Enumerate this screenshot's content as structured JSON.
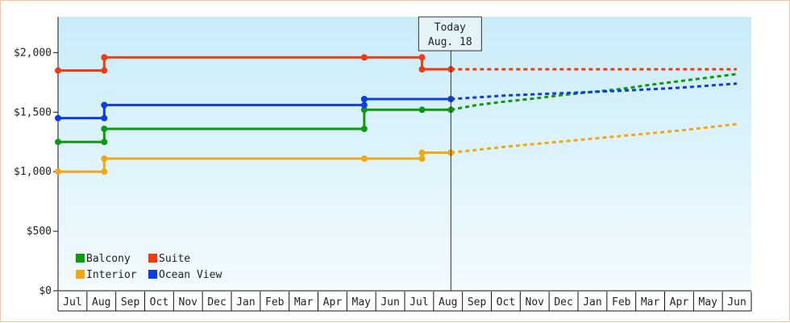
{
  "chart_data": {
    "type": "line",
    "title": "",
    "xlabel": "",
    "ylabel": "",
    "ylim": [
      0,
      2300
    ],
    "y_ticks": [
      0,
      500,
      1000,
      1500,
      2000
    ],
    "y_tick_labels": [
      "$0",
      "$500",
      "$1,000",
      "$1,500",
      "$2,000"
    ],
    "x_tick_labels": [
      "Jul",
      "Aug",
      "Sep",
      "Oct",
      "Nov",
      "Dec",
      "Jan",
      "Feb",
      "Mar",
      "Apr",
      "May",
      "Jun",
      "Jul",
      "Aug",
      "Sep",
      "Oct",
      "Nov",
      "Dec",
      "Jan",
      "Feb",
      "Mar",
      "Apr",
      "May",
      "Jun"
    ],
    "today": {
      "label": "Today",
      "date": "Aug. 18",
      "x": 13.6
    },
    "legend_position": "bottom-left",
    "series": [
      {
        "name": "Balcony",
        "color": "#0d9a0d",
        "points": [
          [
            0,
            1250
          ],
          [
            1.6,
            1250
          ],
          [
            1.6,
            1360
          ],
          [
            10.6,
            1360
          ],
          [
            10.6,
            1520
          ],
          [
            12.6,
            1520
          ],
          [
            13.6,
            1520
          ]
        ],
        "forecast": [
          [
            13.6,
            1520
          ],
          [
            14.5,
            1560
          ],
          [
            15.5,
            1590
          ],
          [
            16.5,
            1615
          ],
          [
            17.5,
            1645
          ],
          [
            18.5,
            1670
          ],
          [
            19.5,
            1695
          ],
          [
            20.5,
            1730
          ],
          [
            21.5,
            1760
          ],
          [
            22.5,
            1790
          ],
          [
            23.5,
            1820
          ]
        ]
      },
      {
        "name": "Interior",
        "color": "#f5a70f",
        "points": [
          [
            0,
            1000
          ],
          [
            1.6,
            1000
          ],
          [
            1.6,
            1110
          ],
          [
            10.6,
            1110
          ],
          [
            12.6,
            1110
          ],
          [
            12.6,
            1160
          ],
          [
            13.6,
            1160
          ]
        ],
        "forecast": [
          [
            13.6,
            1160
          ],
          [
            15.5,
            1210
          ],
          [
            17.5,
            1255
          ],
          [
            19.5,
            1300
          ],
          [
            21.5,
            1345
          ],
          [
            23.5,
            1400
          ]
        ]
      },
      {
        "name": "Suite",
        "color": "#f23a0f",
        "points": [
          [
            0,
            1850
          ],
          [
            1.6,
            1850
          ],
          [
            1.6,
            1960
          ],
          [
            10.6,
            1960
          ],
          [
            12.6,
            1960
          ],
          [
            12.6,
            1860
          ],
          [
            13.6,
            1860
          ]
        ],
        "forecast": [
          [
            13.6,
            1860
          ],
          [
            23.5,
            1860
          ]
        ]
      },
      {
        "name": "Ocean View",
        "color": "#0d3de8",
        "points": [
          [
            0,
            1450
          ],
          [
            1.6,
            1450
          ],
          [
            1.6,
            1560
          ],
          [
            10.6,
            1560
          ],
          [
            10.6,
            1610
          ],
          [
            13.6,
            1610
          ]
        ],
        "forecast": [
          [
            13.6,
            1610
          ],
          [
            15.5,
            1640
          ],
          [
            17.5,
            1660
          ],
          [
            19.5,
            1680
          ],
          [
            21.5,
            1705
          ],
          [
            23.5,
            1740
          ]
        ]
      }
    ],
    "markers": {
      "Balcony": [
        [
          0,
          1250
        ],
        [
          1.6,
          1250
        ],
        [
          1.6,
          1360
        ],
        [
          10.6,
          1360
        ],
        [
          10.6,
          1520
        ],
        [
          12.6,
          1520
        ],
        [
          13.6,
          1520
        ]
      ],
      "Interior": [
        [
          0,
          1000
        ],
        [
          1.6,
          1000
        ],
        [
          1.6,
          1110
        ],
        [
          10.6,
          1110
        ],
        [
          12.6,
          1110
        ],
        [
          12.6,
          1160
        ],
        [
          13.6,
          1160
        ]
      ],
      "Suite": [
        [
          0,
          1850
        ],
        [
          1.6,
          1850
        ],
        [
          1.6,
          1960
        ],
        [
          10.6,
          1960
        ],
        [
          12.6,
          1960
        ],
        [
          12.6,
          1860
        ],
        [
          13.6,
          1860
        ]
      ],
      "Ocean View": [
        [
          0,
          1450
        ],
        [
          1.6,
          1450
        ],
        [
          1.6,
          1560
        ],
        [
          10.6,
          1560
        ],
        [
          10.6,
          1610
        ],
        [
          13.6,
          1610
        ]
      ]
    },
    "legend_order": [
      "Balcony",
      "Suite",
      "Interior",
      "Ocean View"
    ]
  }
}
